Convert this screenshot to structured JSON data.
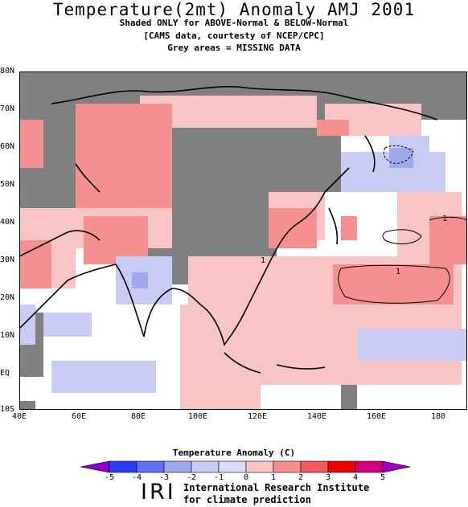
{
  "header": {
    "title": "Temperature(2mt) Anomaly AMJ 2001",
    "line1": "Shaded ONLY for ABOVE-Normal & BELOW-Normal",
    "line2": "[CAMS data, courtesty of NCEP/CPC]",
    "line3": "Grey areas = MISSING DATA"
  },
  "map": {
    "lat_labels": [
      "80N",
      "70N",
      "60N",
      "50N",
      "40N",
      "30N",
      "20N",
      "10N",
      "EQ",
      "10S"
    ],
    "lon_labels": [
      "40E",
      "60E",
      "80E",
      "100E",
      "120E",
      "140E",
      "160E",
      "180"
    ],
    "contour_labels": [
      "1",
      "1",
      "1"
    ],
    "missing_color": "#808080"
  },
  "legend": {
    "title": "Temperature  Anomaly (C)",
    "ticks": [
      "-5",
      "-4",
      "-3",
      "-2",
      "-1",
      "0",
      "1",
      "2",
      "3",
      "4",
      "5"
    ],
    "colors": [
      "#8a00d4",
      "#2a3cf0",
      "#6070f0",
      "#a0a8f0",
      "#c8ccf4",
      "#dcdcf8",
      "#f8c4c4",
      "#f49090",
      "#f05c5c",
      "#f00000",
      "#d00080",
      "#a000c0"
    ]
  },
  "footer": {
    "logo": "IRI",
    "line1": "International Research Institute",
    "line2": "for climate prediction"
  }
}
